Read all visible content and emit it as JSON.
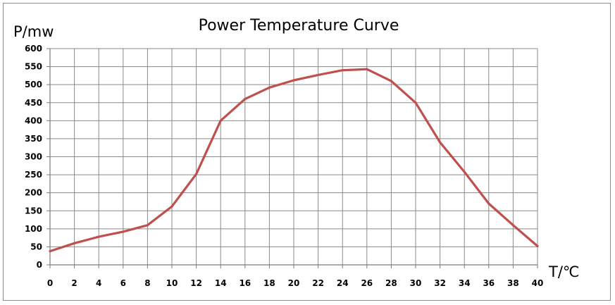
{
  "chart_data": {
    "type": "line",
    "title": "Power Temperature Curve",
    "ylabel": "P/mw",
    "xlabel": "T/℃",
    "xlim": [
      0,
      40
    ],
    "ylim": [
      0,
      600
    ],
    "x_ticks": [
      0,
      2,
      4,
      6,
      8,
      10,
      12,
      14,
      16,
      18,
      20,
      22,
      24,
      26,
      28,
      30,
      32,
      34,
      36,
      38,
      40
    ],
    "y_ticks": [
      0,
      50,
      100,
      150,
      200,
      250,
      300,
      350,
      400,
      450,
      500,
      550,
      600
    ],
    "grid": true,
    "legend": "none",
    "series": [
      {
        "color": "#c0504d",
        "x": [
          0,
          2,
          4,
          6,
          8,
          10,
          12,
          14,
          16,
          18,
          20,
          22,
          24,
          26,
          28,
          30,
          32,
          34,
          36,
          38,
          40
        ],
        "y": [
          38,
          60,
          78,
          92,
          110,
          162,
          252,
          400,
          460,
          492,
          512,
          527,
          540,
          543,
          510,
          450,
          340,
          258,
          170,
          110,
          52
        ]
      }
    ]
  }
}
